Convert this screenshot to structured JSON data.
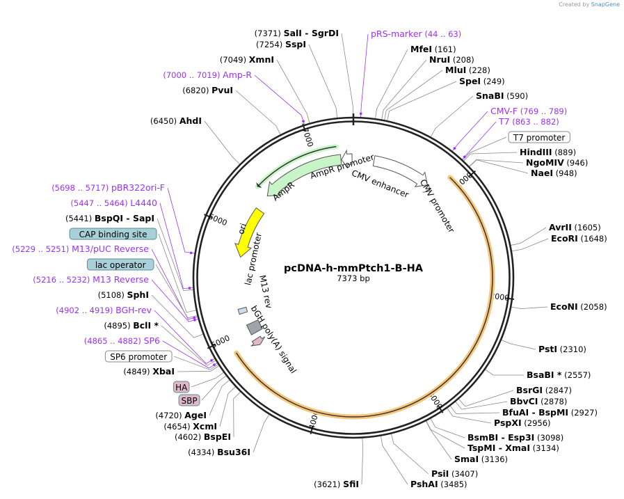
{
  "credit": {
    "prefix": "Created by",
    "brand": "SnapGene"
  },
  "map": {
    "title": "pcDNA-h-mmPtch1-B-HA",
    "length_label": "7373 bp",
    "length_bp": 7373
  },
  "ticks": [
    "1000",
    "2000",
    "3000",
    "4000",
    "5000",
    "6000",
    "7000"
  ],
  "colors": {
    "primer": "#9b30ff",
    "site": "#000000",
    "box_blue": "#a8d0d8",
    "box_pink": "#e0b8c8",
    "orange": "#f7c57a",
    "green": "#c8f5c8",
    "yellow": "#ffff00"
  },
  "sites": [
    {
      "name": "SalI",
      "extra": "SgrDI",
      "pos": 7371
    },
    {
      "name": "SspI",
      "pos": 7254
    },
    {
      "name": "XmnI",
      "pos": 7049
    },
    {
      "name": "PvuI",
      "pos": 6820
    },
    {
      "name": "AhdI",
      "pos": 6450
    },
    {
      "name": "BspQI",
      "extra": "SapI",
      "pos": 5441
    },
    {
      "name": "SphI",
      "pos": 5108
    },
    {
      "name": "BclI *",
      "pos": 4895
    },
    {
      "name": "XbaI",
      "pos": 4849
    },
    {
      "name": "AgeI",
      "pos": 4720
    },
    {
      "name": "XcmI",
      "pos": 4654
    },
    {
      "name": "BspEI",
      "pos": 4602
    },
    {
      "name": "Bsu36I",
      "pos": 4334
    },
    {
      "name": "SfiI",
      "pos": 3621
    },
    {
      "name": "MfeI",
      "pos": 161
    },
    {
      "name": "NruI",
      "pos": 208
    },
    {
      "name": "MluI",
      "pos": 228
    },
    {
      "name": "SpeI",
      "pos": 249
    },
    {
      "name": "SnaBI",
      "pos": 590
    },
    {
      "name": "HindIII",
      "pos": 889
    },
    {
      "name": "NgoMIV",
      "pos": 946
    },
    {
      "name": "NaeI",
      "pos": 948
    },
    {
      "name": "AvrII",
      "pos": 1605
    },
    {
      "name": "EcoRI",
      "pos": 1648
    },
    {
      "name": "EcoNI",
      "pos": 2058
    },
    {
      "name": "PstI",
      "pos": 2310
    },
    {
      "name": "BsaBI *",
      "pos": 2557
    },
    {
      "name": "BsrGI",
      "pos": 2847
    },
    {
      "name": "BbvCI",
      "pos": 2878
    },
    {
      "name": "BfuAI",
      "extra": "BspMI",
      "pos": 2927
    },
    {
      "name": "PspXI",
      "pos": 2956
    },
    {
      "name": "BsmBI",
      "extra": "Esp3I",
      "pos": 3098
    },
    {
      "name": "TspMI",
      "extra": "XmaI",
      "pos": 3134
    },
    {
      "name": "SmaI",
      "pos": 3136
    },
    {
      "name": "PsiI",
      "pos": 3407
    },
    {
      "name": "PshAI",
      "pos": 3485
    }
  ],
  "primers": [
    {
      "name": "pRS-marker",
      "range": "44 .. 63",
      "start": 44,
      "end": 63
    },
    {
      "name": "Amp-R",
      "range": "7000 .. 7019",
      "start": 7000,
      "end": 7019
    },
    {
      "name": "CMV-F",
      "range": "769 .. 789",
      "start": 769,
      "end": 789
    },
    {
      "name": "T7",
      "range": "863 .. 882",
      "start": 863,
      "end": 882
    },
    {
      "name": "pBR322ori-F",
      "range": "5698 .. 5717",
      "start": 5698,
      "end": 5717
    },
    {
      "name": "L4440",
      "range": "5447 .. 5464",
      "start": 5447,
      "end": 5464
    },
    {
      "name": "M13/pUC Reverse",
      "range": "5229 .. 5251",
      "start": 5229,
      "end": 5251
    },
    {
      "name": "M13 Reverse",
      "range": "5216 .. 5232",
      "start": 5216,
      "end": 5232
    },
    {
      "name": "BGH-rev",
      "range": "4902 .. 4919",
      "start": 4902,
      "end": 4919
    },
    {
      "name": "SP6",
      "range": "4865 .. 4882",
      "start": 4865,
      "end": 4882
    }
  ],
  "boxed_features": [
    {
      "name": "T7 promoter"
    },
    {
      "name": "CAP binding site"
    },
    {
      "name": "lac operator"
    },
    {
      "name": "SP6 promoter"
    },
    {
      "name": "HA"
    },
    {
      "name": "SBP"
    }
  ],
  "features": [
    {
      "name": "AmpR promoter"
    },
    {
      "name": "AmpR"
    },
    {
      "name": "CMV enhancer"
    },
    {
      "name": "CMV promoter"
    },
    {
      "name": "ori"
    },
    {
      "name": "lac promoter"
    },
    {
      "name": "M13 rev"
    },
    {
      "name": "bGH poly(A) signal"
    }
  ]
}
